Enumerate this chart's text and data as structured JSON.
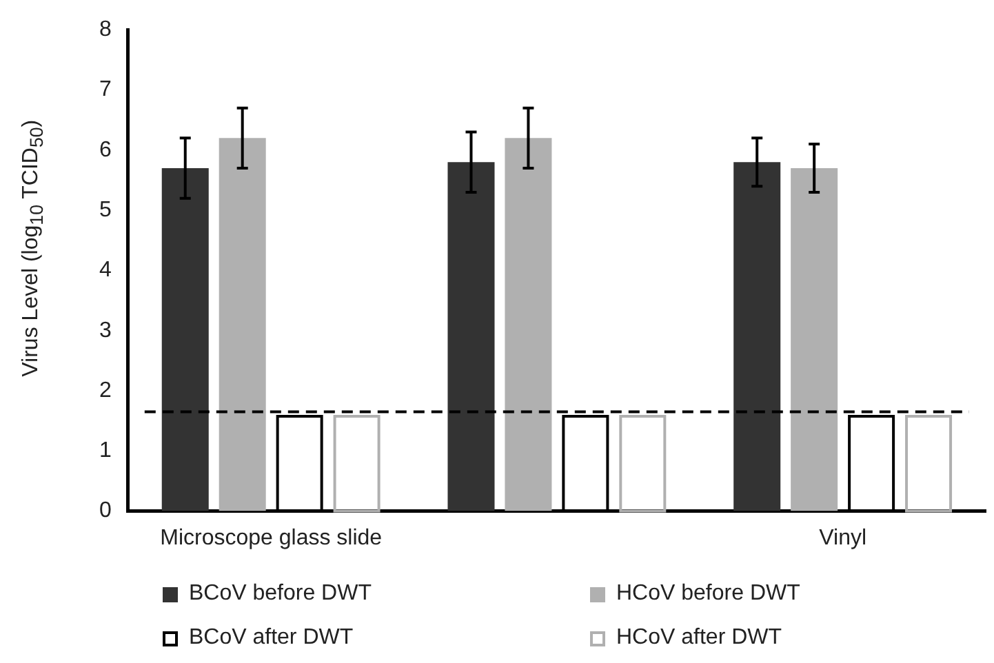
{
  "chart_data": {
    "type": "bar",
    "ylabel": "Virus Level (log$_{10}$ TCID$_{50}$)",
    "categories": [
      "Microscope glass slide",
      null,
      "Vinyl"
    ],
    "series": [
      {
        "name": "BCoV before DWT",
        "color": "#333333",
        "values": [
          5.7,
          5.8,
          5.8
        ],
        "errors": [
          0.5,
          0.5,
          0.4
        ]
      },
      {
        "name": "HCoV before DWT",
        "color": "#b0b0b0",
        "values": [
          6.2,
          6.2,
          5.7
        ],
        "errors": [
          0.5,
          0.5,
          0.4
        ]
      },
      {
        "name": "BCoV after DWT",
        "color": "#000000",
        "values": [
          1.6,
          1.6,
          1.6
        ],
        "line_style": "solid"
      },
      {
        "name": "HCoV after DWT",
        "color": "#b0b0b0",
        "values": [
          1.6,
          1.6,
          1.6
        ],
        "line_style": "solid"
      }
    ],
    "ylim": [
      0,
      8
    ],
    "yticks": [
      0,
      1,
      2,
      3,
      4,
      5,
      6,
      7,
      8
    ],
    "grid": false,
    "legend": "bottom",
    "ref_lines": [
      {
        "axis": "y",
        "value": 1.65,
        "color": "#000000",
        "line_style": "dashed"
      }
    ]
  }
}
